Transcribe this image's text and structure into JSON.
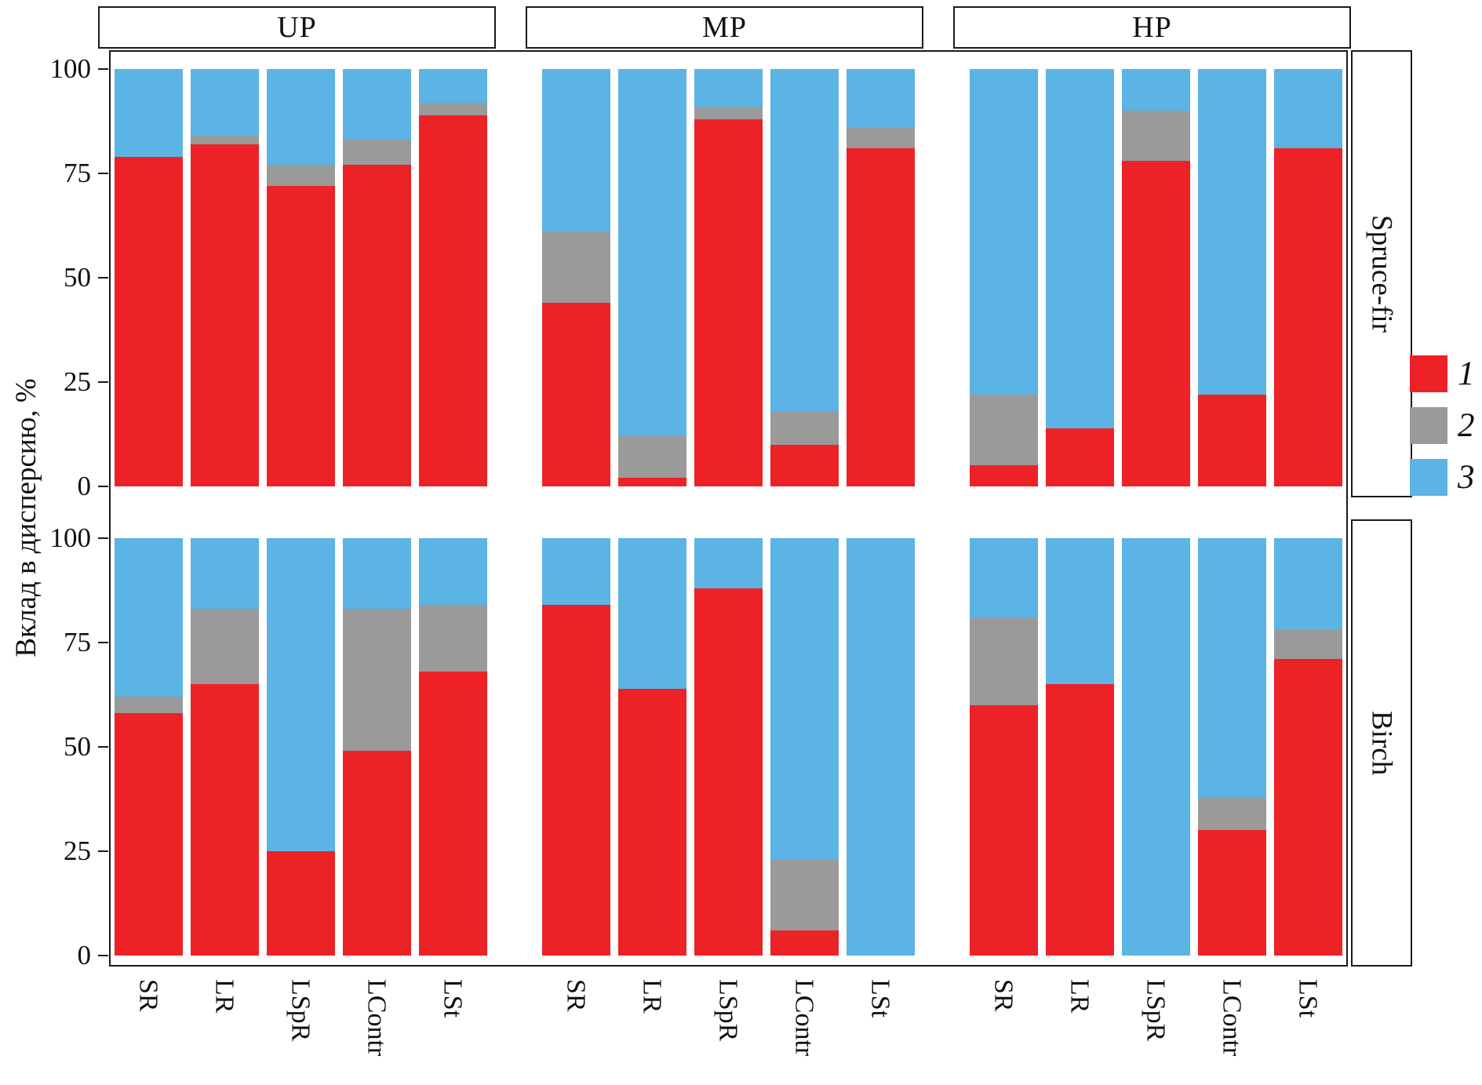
{
  "chart_data": {
    "type": "bar",
    "stacked": true,
    "title": "",
    "ylabel": "Вклад в дисперсию, %",
    "ylim": [
      0,
      100
    ],
    "yticks": [
      0,
      25,
      50,
      75,
      100
    ],
    "grid": false,
    "legend_position": "right-center",
    "categories": [
      "SR",
      "LR",
      "LSpR",
      "LContr",
      "LSt"
    ],
    "facet_columns": [
      "UP",
      "MP",
      "HP"
    ],
    "facet_rows": [
      "Spruce-fir",
      "Birch"
    ],
    "series_names": [
      "1",
      "2",
      "3"
    ],
    "series_colors": {
      "1": "#EC2227",
      "2": "#9A9A9A",
      "3": "#5BB4E4"
    },
    "values_note": "per bar: [series1_red, series2_gray, series3_blue] in percent",
    "values": {
      "Spruce-fir": {
        "UP": {
          "SR": [
            79,
            0,
            21
          ],
          "LR": [
            82,
            2,
            16
          ],
          "LSpR": [
            72,
            5,
            23
          ],
          "LContr": [
            77,
            6,
            17
          ],
          "LSt": [
            89,
            3,
            8
          ]
        },
        "MP": {
          "SR": [
            44,
            17,
            39
          ],
          "LR": [
            2,
            10,
            88
          ],
          "LSpR": [
            88,
            3,
            9
          ],
          "LContr": [
            10,
            8,
            82
          ],
          "LSt": [
            81,
            5,
            14
          ]
        },
        "HP": {
          "SR": [
            5,
            17,
            78
          ],
          "LR": [
            14,
            0,
            86
          ],
          "LSpR": [
            78,
            12,
            10
          ],
          "LContr": [
            22,
            0,
            78
          ],
          "LSt": [
            81,
            0,
            19
          ]
        }
      },
      "Birch": {
        "UP": {
          "SR": [
            58,
            4,
            38
          ],
          "LR": [
            65,
            18,
            17
          ],
          "LSpR": [
            25,
            0,
            75
          ],
          "LContr": [
            49,
            34,
            17
          ],
          "LSt": [
            68,
            16,
            16
          ]
        },
        "MP": {
          "SR": [
            84,
            0,
            16
          ],
          "LR": [
            64,
            0,
            36
          ],
          "LSpR": [
            88,
            0,
            12
          ],
          "LContr": [
            6,
            17,
            77
          ],
          "LSt": [
            0,
            0,
            100
          ]
        },
        "HP": {
          "SR": [
            60,
            21,
            19
          ],
          "LR": [
            65,
            0,
            35
          ],
          "LSpR": [
            0,
            0,
            100
          ],
          "LContr": [
            30,
            8,
            62
          ],
          "LSt": [
            71,
            7,
            22
          ]
        }
      }
    }
  },
  "legend": {
    "items": [
      {
        "label": "1",
        "color": "#EC2227"
      },
      {
        "label": "2",
        "color": "#9A9A9A"
      },
      {
        "label": "3",
        "color": "#5BB4E4"
      }
    ]
  }
}
